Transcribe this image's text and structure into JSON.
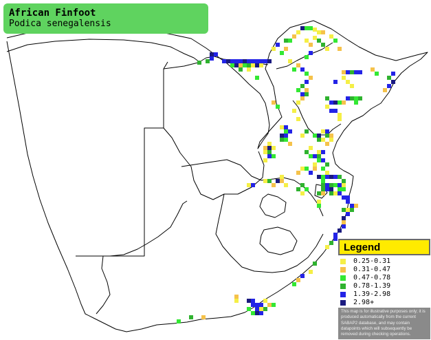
{
  "title": {
    "common_name": "African Finfoot",
    "scientific_name": "Podica senegalensis"
  },
  "legend": {
    "heading": "Legend",
    "items": [
      {
        "label": "0.25-0.31",
        "color": "#f5ef46"
      },
      {
        "label": "0.31-0.47",
        "color": "#f5c24a"
      },
      {
        "label": "0.47-0.78",
        "color": "#33e833"
      },
      {
        "label": "0.78-1.39",
        "color": "#2fb22f"
      },
      {
        "label": "1.39-2.98",
        "color": "#2323e6"
      },
      {
        "label": "2.98+",
        "color": "#1a1a80"
      }
    ],
    "note": "This map is for illustrative purposes only; it is produced automatically from the current SABAP2 database, and may contain datapoints which will subsequently be removed during checking operations."
  },
  "cells": [
    [
      437,
      38,
      5
    ],
    [
      443,
      38,
      2
    ],
    [
      449,
      38,
      2
    ],
    [
      455,
      40,
      0
    ],
    [
      461,
      44,
      0
    ],
    [
      467,
      44,
      1
    ],
    [
      431,
      44,
      0
    ],
    [
      425,
      50,
      1
    ],
    [
      419,
      56,
      2
    ],
    [
      413,
      56,
      3
    ],
    [
      455,
      52,
      0
    ],
    [
      443,
      56,
      0
    ],
    [
      449,
      62,
      1
    ],
    [
      461,
      56,
      3
    ],
    [
      467,
      62,
      3
    ],
    [
      473,
      68,
      0
    ],
    [
      491,
      68,
      1
    ],
    [
      479,
      50,
      0
    ],
    [
      401,
      62,
      4
    ],
    [
      395,
      68,
      0
    ],
    [
      407,
      74,
      2
    ],
    [
      413,
      68,
      1
    ],
    [
      485,
      56,
      2
    ],
    [
      449,
      74,
      4
    ],
    [
      443,
      80,
      2
    ],
    [
      305,
      76,
      5
    ],
    [
      311,
      76,
      4
    ],
    [
      305,
      82,
      4
    ],
    [
      299,
      86,
      3
    ],
    [
      287,
      88,
      3
    ],
    [
      323,
      86,
      4
    ],
    [
      329,
      86,
      5
    ],
    [
      335,
      86,
      4
    ],
    [
      341,
      86,
      4
    ],
    [
      347,
      86,
      4
    ],
    [
      353,
      86,
      5
    ],
    [
      359,
      86,
      4
    ],
    [
      365,
      86,
      4
    ],
    [
      371,
      86,
      4
    ],
    [
      377,
      86,
      4
    ],
    [
      383,
      86,
      4
    ],
    [
      389,
      86,
      5
    ],
    [
      335,
      92,
      2
    ],
    [
      341,
      92,
      5
    ],
    [
      347,
      92,
      1
    ],
    [
      353,
      92,
      2
    ],
    [
      359,
      92,
      3
    ],
    [
      365,
      92,
      0
    ],
    [
      371,
      92,
      5
    ],
    [
      377,
      92,
      0
    ],
    [
      359,
      98,
      0
    ],
    [
      347,
      98,
      3
    ],
    [
      419,
      86,
      0
    ],
    [
      431,
      92,
      1
    ],
    [
      437,
      98,
      4
    ],
    [
      443,
      104,
      2
    ],
    [
      425,
      98,
      2
    ],
    [
      497,
      102,
      1
    ],
    [
      503,
      102,
      4
    ],
    [
      509,
      102,
      3
    ],
    [
      515,
      102,
      4
    ],
    [
      521,
      102,
      4
    ],
    [
      539,
      98,
      1
    ],
    [
      545,
      104,
      2
    ],
    [
      485,
      116,
      4
    ],
    [
      497,
      110,
      0
    ],
    [
      503,
      116,
      0
    ],
    [
      509,
      122,
      0
    ],
    [
      449,
      110,
      1
    ],
    [
      443,
      116,
      4
    ],
    [
      437,
      122,
      3
    ],
    [
      443,
      128,
      1
    ],
    [
      431,
      128,
      2
    ],
    [
      437,
      134,
      4
    ],
    [
      443,
      134,
      3
    ],
    [
      437,
      140,
      1
    ],
    [
      431,
      146,
      0
    ],
    [
      425,
      158,
      0
    ],
    [
      473,
      140,
      3
    ],
    [
      479,
      146,
      4
    ],
    [
      485,
      146,
      5
    ],
    [
      473,
      152,
      0
    ],
    [
      479,
      158,
      4
    ],
    [
      485,
      158,
      4
    ],
    [
      491,
      146,
      2
    ],
    [
      497,
      146,
      1
    ],
    [
      503,
      140,
      4
    ],
    [
      509,
      140,
      3
    ],
    [
      515,
      140,
      2
    ],
    [
      521,
      140,
      3
    ],
    [
      515,
      146,
      2
    ],
    [
      563,
      110,
      3
    ],
    [
      569,
      104,
      4
    ],
    [
      569,
      116,
      5
    ],
    [
      563,
      122,
      4
    ],
    [
      557,
      128,
      1
    ],
    [
      371,
      110,
      2
    ],
    [
      395,
      146,
      1
    ],
    [
      401,
      152,
      2
    ],
    [
      491,
      164,
      0
    ],
    [
      491,
      170,
      0
    ],
    [
      407,
      182,
      0
    ],
    [
      413,
      182,
      4
    ],
    [
      419,
      188,
      4
    ],
    [
      413,
      188,
      2
    ],
    [
      407,
      194,
      5
    ],
    [
      413,
      194,
      4
    ],
    [
      407,
      200,
      3
    ],
    [
      413,
      200,
      2
    ],
    [
      419,
      206,
      1
    ],
    [
      431,
      170,
      0
    ],
    [
      437,
      194,
      0
    ],
    [
      443,
      188,
      3
    ],
    [
      467,
      188,
      0
    ],
    [
      473,
      188,
      4
    ],
    [
      473,
      194,
      3
    ],
    [
      479,
      194,
      1
    ],
    [
      461,
      194,
      5
    ],
    [
      455,
      194,
      2
    ],
    [
      461,
      200,
      3
    ],
    [
      467,
      200,
      0
    ],
    [
      473,
      206,
      1
    ],
    [
      479,
      200,
      0
    ],
    [
      383,
      212,
      1
    ],
    [
      389,
      212,
      5
    ],
    [
      389,
      206,
      0
    ],
    [
      395,
      212,
      0
    ],
    [
      383,
      218,
      0
    ],
    [
      389,
      218,
      3
    ],
    [
      389,
      224,
      4
    ],
    [
      383,
      230,
      0
    ],
    [
      395,
      224,
      2
    ],
    [
      449,
      212,
      0
    ],
    [
      443,
      218,
      3
    ],
    [
      449,
      224,
      2
    ],
    [
      455,
      224,
      4
    ],
    [
      461,
      224,
      3
    ],
    [
      461,
      230,
      2
    ],
    [
      467,
      230,
      4
    ],
    [
      467,
      218,
      4
    ],
    [
      461,
      218,
      0
    ],
    [
      473,
      236,
      3
    ],
    [
      467,
      242,
      2
    ],
    [
      473,
      248,
      0
    ],
    [
      455,
      236,
      0
    ],
    [
      455,
      242,
      1
    ],
    [
      449,
      248,
      4
    ],
    [
      443,
      242,
      2
    ],
    [
      437,
      242,
      0
    ],
    [
      431,
      248,
      1
    ],
    [
      461,
      254,
      5
    ],
    [
      467,
      254,
      2
    ],
    [
      473,
      254,
      4
    ],
    [
      479,
      254,
      5
    ],
    [
      485,
      254,
      4
    ],
    [
      491,
      254,
      3
    ],
    [
      467,
      260,
      2
    ],
    [
      467,
      266,
      3
    ],
    [
      473,
      266,
      4
    ],
    [
      479,
      266,
      3
    ],
    [
      485,
      266,
      2
    ],
    [
      491,
      266,
      4
    ],
    [
      497,
      260,
      3
    ],
    [
      497,
      266,
      0
    ],
    [
      467,
      272,
      3
    ],
    [
      473,
      272,
      4
    ],
    [
      479,
      272,
      5
    ],
    [
      491,
      272,
      2
    ],
    [
      497,
      272,
      2
    ],
    [
      461,
      278,
      3
    ],
    [
      467,
      278,
      1
    ],
    [
      479,
      278,
      3
    ],
    [
      485,
      278,
      0
    ],
    [
      491,
      278,
      4
    ],
    [
      497,
      284,
      4
    ],
    [
      503,
      284,
      4
    ],
    [
      503,
      290,
      4
    ],
    [
      509,
      296,
      4
    ],
    [
      515,
      296,
      1
    ],
    [
      503,
      302,
      0
    ],
    [
      497,
      302,
      3
    ],
    [
      509,
      302,
      3
    ],
    [
      503,
      308,
      4
    ],
    [
      497,
      314,
      5
    ],
    [
      497,
      320,
      1
    ],
    [
      497,
      326,
      4
    ],
    [
      491,
      332,
      5
    ],
    [
      485,
      338,
      4
    ],
    [
      485,
      344,
      4
    ],
    [
      479,
      350,
      3
    ],
    [
      473,
      356,
      0
    ],
    [
      461,
      290,
      0
    ],
    [
      461,
      296,
      2
    ],
    [
      383,
      260,
      0
    ],
    [
      389,
      260,
      3
    ],
    [
      395,
      266,
      1
    ],
    [
      401,
      260,
      5
    ],
    [
      407,
      254,
      0
    ],
    [
      407,
      260,
      1
    ],
    [
      413,
      266,
      0
    ],
    [
      359,
      266,
      0
    ],
    [
      365,
      266,
      4
    ],
    [
      431,
      272,
      3
    ],
    [
      437,
      266,
      3
    ],
    [
      443,
      272,
      2
    ],
    [
      437,
      278,
      0
    ],
    [
      455,
      380,
      3
    ],
    [
      437,
      398,
      4
    ],
    [
      431,
      404,
      1
    ],
    [
      425,
      410,
      2
    ],
    [
      449,
      392,
      0
    ],
    [
      395,
      440,
      2
    ],
    [
      389,
      440,
      1
    ],
    [
      383,
      434,
      0
    ],
    [
      377,
      440,
      4
    ],
    [
      371,
      440,
      4
    ],
    [
      365,
      434,
      4
    ],
    [
      365,
      440,
      4
    ],
    [
      371,
      446,
      4
    ],
    [
      377,
      446,
      0
    ],
    [
      371,
      452,
      5
    ],
    [
      377,
      452,
      4
    ],
    [
      359,
      434,
      5
    ],
    [
      359,
      446,
      2
    ],
    [
      341,
      434,
      0
    ],
    [
      341,
      428,
      1
    ],
    [
      365,
      452,
      2
    ],
    [
      383,
      446,
      3
    ],
    [
      275,
      458,
      3
    ],
    [
      293,
      458,
      1
    ],
    [
      257,
      464,
      2
    ]
  ]
}
